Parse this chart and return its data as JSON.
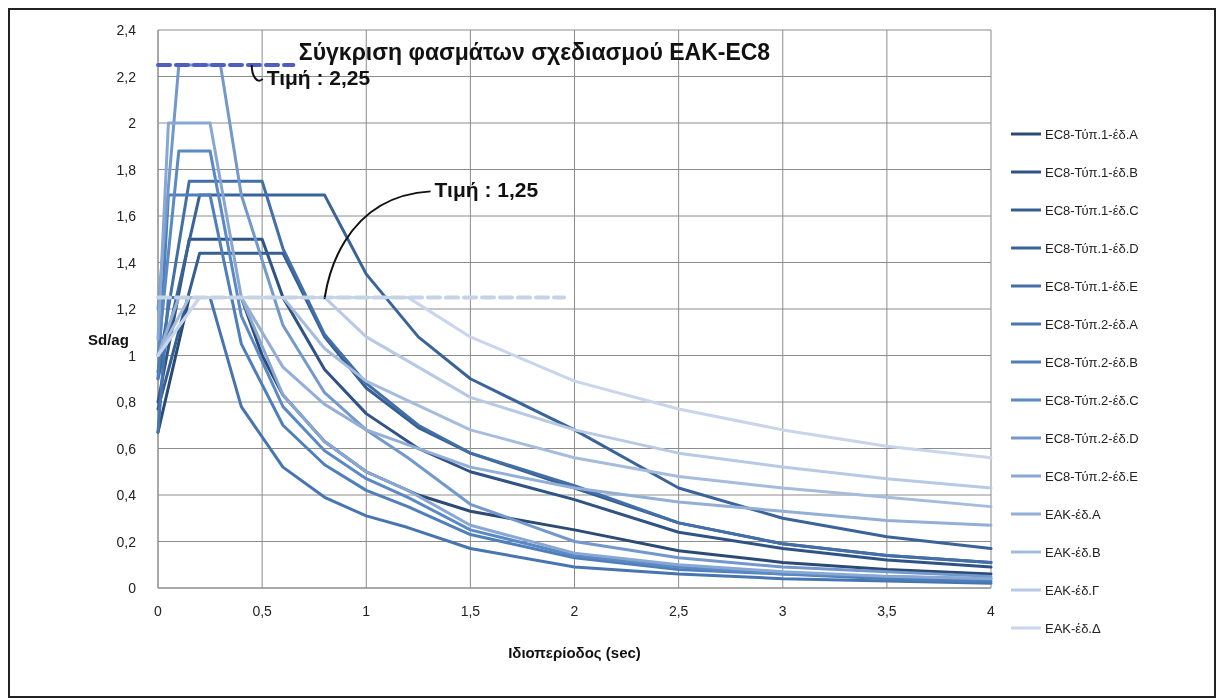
{
  "chart_data": {
    "type": "line",
    "title": "Σύγκριση φασμάτων σχεδιασμού ΕΑΚ-EC8",
    "xlabel": "Ιδιοπερίοδος (sec)",
    "ylabel": "Sd/ag",
    "xlim": [
      0,
      4
    ],
    "xticks": [
      0,
      {
        "value": 0.5,
        "label": "0,5"
      },
      1,
      {
        "value": 1.5,
        "label": "1,5"
      },
      2,
      {
        "value": 2.5,
        "label": "2,5"
      },
      3,
      {
        "value": 3.5,
        "label": "3,5"
      },
      4
    ],
    "ylim": [
      0,
      2.4
    ],
    "yticks": [
      0,
      {
        "value": 0.2,
        "label": "0,2"
      },
      {
        "value": 0.4,
        "label": "0,4"
      },
      {
        "value": 0.6,
        "label": "0,6"
      },
      {
        "value": 0.8,
        "label": "0,8"
      },
      1,
      {
        "value": 1.2,
        "label": "1,2"
      },
      {
        "value": 1.4,
        "label": "1,4"
      },
      {
        "value": 1.6,
        "label": "1,6"
      },
      {
        "value": 1.8,
        "label": "1,8"
      },
      2,
      {
        "value": 2.2,
        "label": "2,2"
      },
      {
        "value": 2.4,
        "label": "2,4"
      }
    ],
    "grid": true,
    "legend": "right",
    "marker": "none",
    "series": [
      {
        "name": "EC8-Τύπ.1-έδ.A",
        "color": "#2b4a74",
        "x": [
          0,
          0.15,
          0.4,
          0.5,
          0.6,
          0.8,
          1,
          1.25,
          1.5,
          2,
          2.5,
          3,
          3.5,
          4
        ],
        "values": [
          0.67,
          1.25,
          1.25,
          1,
          0.83,
          0.63,
          0.5,
          0.4,
          0.33,
          0.25,
          0.16,
          0.11,
          0.08,
          0.06
        ]
      },
      {
        "name": "EC8-Τύπ.1-έδ.B",
        "color": "#2f5384",
        "x": [
          0,
          0.15,
          0.5,
          0.6,
          0.8,
          1,
          1.25,
          1.5,
          2,
          2.5,
          3,
          3.5,
          4
        ],
        "values": [
          0.8,
          1.5,
          1.5,
          1.25,
          0.94,
          0.75,
          0.6,
          0.5,
          0.38,
          0.24,
          0.17,
          0.12,
          0.09
        ]
      },
      {
        "name": "EC8-Τύπ.1-έδ.C",
        "color": "#365f91",
        "x": [
          0,
          0.2,
          0.6,
          0.8,
          1,
          1.25,
          1.5,
          2,
          2.5,
          3,
          3.5,
          4
        ],
        "values": [
          0.77,
          1.44,
          1.44,
          1.08,
          0.86,
          0.69,
          0.58,
          0.43,
          0.28,
          0.19,
          0.14,
          0.11
        ]
      },
      {
        "name": "EC8-Τύπ.1-έδ.D",
        "color": "#3a6499",
        "x": [
          0,
          0.2,
          0.8,
          1,
          1.25,
          1.5,
          2,
          2.5,
          3,
          3.5,
          4
        ],
        "values": [
          0.9,
          1.69,
          1.69,
          1.35,
          1.08,
          0.9,
          0.68,
          0.43,
          0.3,
          0.22,
          0.17
        ]
      },
      {
        "name": "EC8-Τύπ.1-έδ.E",
        "color": "#426fa8",
        "x": [
          0,
          0.15,
          0.5,
          0.6,
          0.8,
          1,
          1.25,
          1.5,
          2,
          2.5,
          3,
          3.5,
          4
        ],
        "values": [
          0.93,
          1.75,
          1.75,
          1.46,
          1.09,
          0.88,
          0.7,
          0.58,
          0.44,
          0.28,
          0.19,
          0.14,
          0.11
        ]
      },
      {
        "name": "EC8-Τύπ.2-έδ.A",
        "color": "#4675b0",
        "x": [
          0,
          0.05,
          0.25,
          0.4,
          0.6,
          0.8,
          1,
          1.2,
          1.5,
          2,
          2.5,
          3,
          3.5,
          4
        ],
        "values": [
          0.67,
          1.25,
          1.25,
          0.78,
          0.52,
          0.39,
          0.31,
          0.26,
          0.17,
          0.09,
          0.06,
          0.04,
          0.03,
          0.02
        ]
      },
      {
        "name": "EC8-Τύπ.2-έδ.B",
        "color": "#4f7fbb",
        "x": [
          0,
          0.05,
          0.25,
          0.4,
          0.6,
          0.8,
          1,
          1.2,
          1.5,
          2,
          2.5,
          3,
          3.5,
          4
        ],
        "values": [
          0.9,
          1.69,
          1.69,
          1.05,
          0.7,
          0.53,
          0.42,
          0.35,
          0.23,
          0.13,
          0.08,
          0.06,
          0.04,
          0.03
        ]
      },
      {
        "name": "EC8-Τύπ.2-έδ.C",
        "color": "#5b89c3",
        "x": [
          0,
          0.1,
          0.25,
          0.4,
          0.6,
          0.8,
          1,
          1.2,
          1.5,
          2,
          2.5,
          3,
          3.5,
          4
        ],
        "values": [
          1,
          1.88,
          1.88,
          1.17,
          0.78,
          0.59,
          0.47,
          0.39,
          0.25,
          0.14,
          0.09,
          0.06,
          0.05,
          0.04
        ]
      },
      {
        "name": "EC8-Τύπ.2-έδ.D",
        "color": "#7398cb",
        "x": [
          0,
          0.1,
          0.3,
          0.4,
          0.6,
          0.8,
          1,
          1.2,
          1.5,
          2,
          2.5,
          3,
          3.5,
          4
        ],
        "values": [
          1.2,
          2.25,
          2.25,
          1.69,
          1.13,
          0.84,
          0.68,
          0.56,
          0.36,
          0.2,
          0.13,
          0.09,
          0.07,
          0.05
        ]
      },
      {
        "name": "EC8-Τύπ.2-έδ.E",
        "color": "#88a7d3",
        "x": [
          0,
          0.05,
          0.25,
          0.4,
          0.6,
          0.8,
          1,
          1.2,
          1.5,
          2,
          2.5,
          3,
          3.5,
          4
        ],
        "values": [
          1.07,
          2,
          2,
          1.25,
          0.83,
          0.63,
          0.5,
          0.42,
          0.27,
          0.15,
          0.1,
          0.07,
          0.05,
          0.04
        ]
      },
      {
        "name": "ΕΑΚ-έδ.Α",
        "color": "#93afd6",
        "x": [
          0,
          0.1,
          0.4,
          0.6,
          0.8,
          1,
          1.5,
          2,
          2.5,
          3,
          3.5,
          4
        ],
        "values": [
          1,
          1.25,
          1.25,
          0.95,
          0.79,
          0.68,
          0.52,
          0.43,
          0.37,
          0.33,
          0.29,
          0.27
        ]
      },
      {
        "name": "ΕΑΚ-έδ.Β",
        "color": "#a5bcdd",
        "x": [
          0,
          0.15,
          0.6,
          0.8,
          1,
          1.5,
          2,
          2.5,
          3,
          3.5,
          4
        ],
        "values": [
          1,
          1.25,
          1.25,
          1.03,
          0.89,
          0.68,
          0.56,
          0.48,
          0.43,
          0.39,
          0.35
        ]
      },
      {
        "name": "ΕΑΚ-έδ.Γ",
        "color": "#b7c9e4",
        "x": [
          0,
          0.2,
          0.8,
          1,
          1.5,
          2,
          2.5,
          3,
          3.5,
          4
        ],
        "values": [
          1,
          1.25,
          1.25,
          1.08,
          0.82,
          0.68,
          0.58,
          0.52,
          0.47,
          0.43
        ]
      },
      {
        "name": "ΕΑΚ-έδ.Δ",
        "color": "#c8d5ea",
        "x": [
          0,
          0.2,
          1.2,
          1.5,
          2,
          2.5,
          3,
          3.5,
          4
        ],
        "values": [
          1,
          1.25,
          1.25,
          1.08,
          0.89,
          0.77,
          0.68,
          0.61,
          0.56
        ]
      },
      {
        "color": "#4f5fc0",
        "line_style": "dashed",
        "x": [
          0,
          0.65
        ],
        "values": [
          2.25,
          2.25
        ]
      },
      {
        "color": "#c5d3e6",
        "line_style": "dashed",
        "x": [
          0,
          1.95
        ],
        "values": [
          1.25,
          1.25
        ]
      }
    ],
    "annotations": [
      {
        "text": "Τιμή : 2,25",
        "x": 0.45,
        "y": 2.25
      },
      {
        "text": "Τιμή : 1,25",
        "x": 0.8,
        "y": 1.25
      }
    ]
  }
}
